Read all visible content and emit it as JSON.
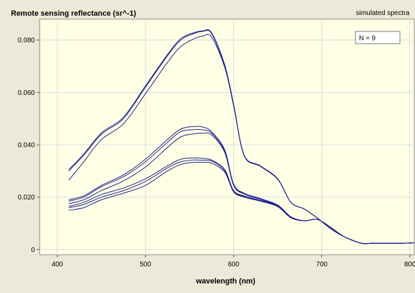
{
  "chart_data": {
    "type": "line",
    "title": "Remote sensing reflectance (sr^-1)",
    "subtitle": "simulated spectra",
    "xlabel": "wavelength (nm)",
    "ylabel": "",
    "xlim": [
      380,
      805
    ],
    "ylim": [
      -0.002,
      0.088
    ],
    "xticks": [
      400,
      500,
      600,
      700,
      800
    ],
    "yticks": [
      0,
      0.02,
      0.04,
      0.06,
      0.08
    ],
    "xtick_labels": [
      "400",
      "500",
      "600",
      "700",
      "800"
    ],
    "ytick_labels": [
      "0",
      "0.020",
      "0.040",
      "0.060",
      "0.080"
    ],
    "grid": true,
    "legend_text": "N = 9",
    "legend_position": "top-right",
    "colors": {
      "plot_bg": "#ffffe6",
      "frame_bg": "#ece9d8",
      "line": "#1a1f8c",
      "grid": "#d8dce6"
    },
    "x": [
      413,
      430,
      450,
      475,
      500,
      525,
      540,
      555,
      565,
      575,
      590,
      600,
      612,
      630,
      650,
      665,
      680,
      695,
      710,
      725,
      745,
      760,
      790,
      805
    ],
    "series": [
      {
        "values": [
          0.03,
          0.036,
          0.044,
          0.05,
          0.062,
          0.074,
          0.08,
          0.0825,
          0.0833,
          0.0825,
          0.07,
          0.055,
          0.036,
          0.032,
          0.027,
          0.018,
          0.0155,
          0.012,
          0.008,
          0.005,
          0.0024,
          0.0024,
          0.0024,
          0.0026
        ]
      },
      {
        "values": [
          0.0305,
          0.0365,
          0.0445,
          0.0505,
          0.0625,
          0.0745,
          0.0805,
          0.0828,
          0.0835,
          0.0828,
          0.0705,
          0.0555,
          0.036,
          0.032,
          0.027,
          0.018,
          0.0155,
          0.012,
          0.008,
          0.005,
          0.0024,
          0.0024,
          0.0024,
          0.0026
        ]
      },
      {
        "values": [
          0.0265,
          0.0335,
          0.042,
          0.048,
          0.0595,
          0.0715,
          0.0775,
          0.0805,
          0.0815,
          0.0812,
          0.0695,
          0.055,
          0.0358,
          0.0318,
          0.0268,
          0.018,
          0.0155,
          0.012,
          0.008,
          0.005,
          0.0024,
          0.0024,
          0.0024,
          0.0026
        ]
      },
      {
        "values": [
          0.019,
          0.0205,
          0.0245,
          0.0285,
          0.0345,
          0.042,
          0.046,
          0.047,
          0.0468,
          0.045,
          0.038,
          0.025,
          0.0215,
          0.0195,
          0.017,
          0.0125,
          0.011,
          0.0115,
          0.0085,
          0.005,
          0.0024,
          0.0024,
          0.0024,
          0.0026
        ]
      },
      {
        "values": [
          0.0185,
          0.02,
          0.024,
          0.0278,
          0.0335,
          0.041,
          0.045,
          0.0458,
          0.0457,
          0.0445,
          0.0375,
          0.0248,
          0.0213,
          0.0193,
          0.0168,
          0.0124,
          0.011,
          0.0115,
          0.0085,
          0.005,
          0.0024,
          0.0024,
          0.0024,
          0.0026
        ]
      },
      {
        "values": [
          0.0175,
          0.019,
          0.0225,
          0.0262,
          0.0315,
          0.039,
          0.043,
          0.0442,
          0.0444,
          0.0438,
          0.037,
          0.0245,
          0.0212,
          0.0192,
          0.0167,
          0.0123,
          0.011,
          0.0115,
          0.0085,
          0.005,
          0.0024,
          0.0024,
          0.0024,
          0.0026
        ]
      },
      {
        "values": [
          0.0165,
          0.018,
          0.021,
          0.0235,
          0.027,
          0.032,
          0.0345,
          0.035,
          0.0348,
          0.0342,
          0.0305,
          0.0225,
          0.0205,
          0.0188,
          0.0166,
          0.0122,
          0.011,
          0.0115,
          0.0085,
          0.005,
          0.0024,
          0.0024,
          0.0024,
          0.0026
        ]
      },
      {
        "values": [
          0.016,
          0.0172,
          0.02,
          0.0225,
          0.026,
          0.0312,
          0.0335,
          0.0342,
          0.0341,
          0.0338,
          0.03,
          0.0222,
          0.0203,
          0.0186,
          0.0165,
          0.0122,
          0.011,
          0.0115,
          0.0085,
          0.005,
          0.0024,
          0.0024,
          0.0024,
          0.0026
        ]
      },
      {
        "values": [
          0.015,
          0.016,
          0.019,
          0.0215,
          0.0245,
          0.03,
          0.0325,
          0.0333,
          0.0333,
          0.033,
          0.0295,
          0.022,
          0.02,
          0.0185,
          0.0164,
          0.0121,
          0.011,
          0.0115,
          0.0085,
          0.005,
          0.0024,
          0.0024,
          0.0024,
          0.0026
        ]
      }
    ]
  }
}
